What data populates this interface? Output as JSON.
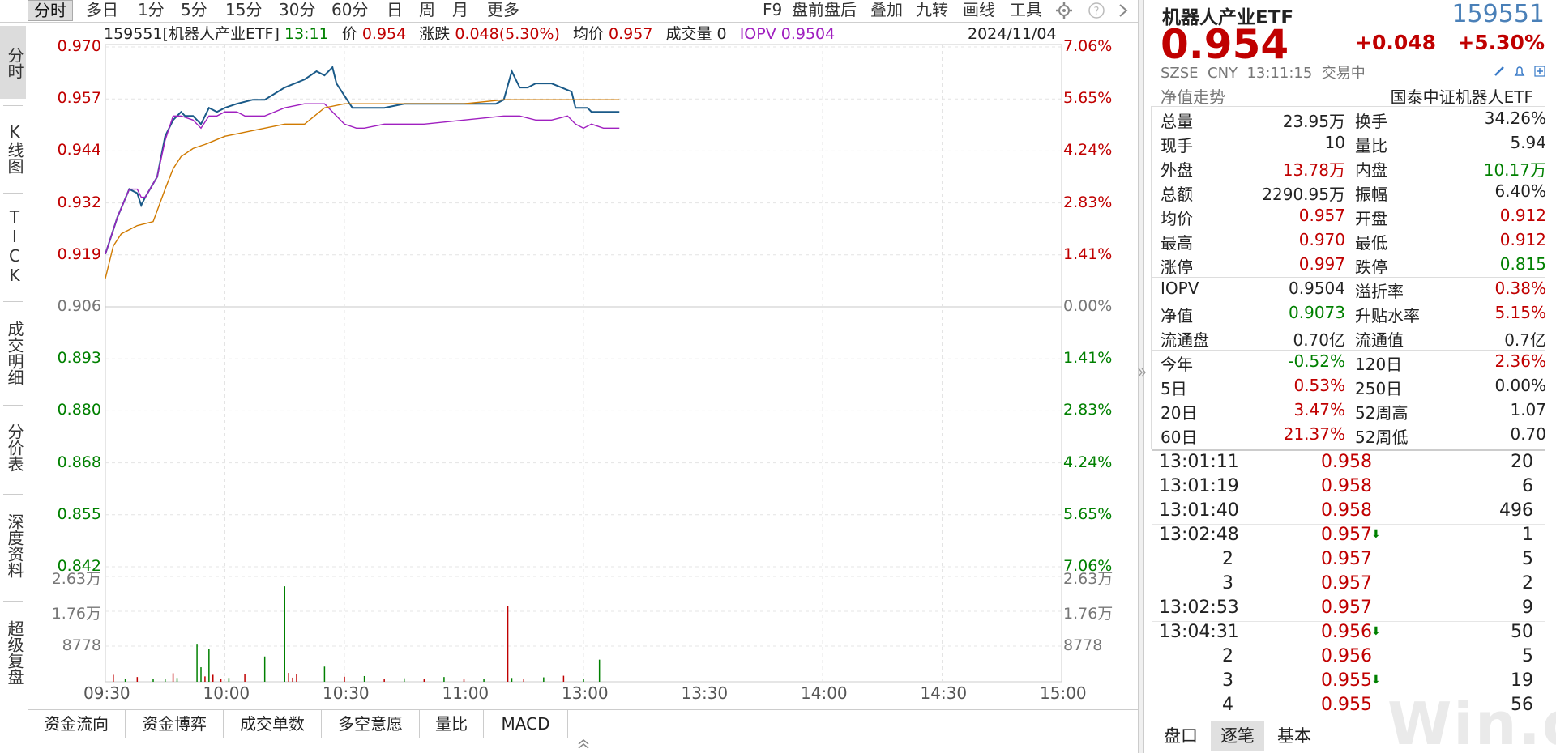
{
  "toolbar": {
    "periods": [
      {
        "label": "分时"
      },
      {
        "label": "多日"
      },
      {
        "label": "1分"
      },
      {
        "label": "5分"
      },
      {
        "label": "15分"
      },
      {
        "label": "30分"
      },
      {
        "label": "60分"
      },
      {
        "label": "日"
      },
      {
        "label": "周"
      },
      {
        "label": "月"
      },
      {
        "label": "更多"
      }
    ],
    "right": [
      {
        "label": "F9"
      },
      {
        "label": "盘前盘后"
      },
      {
        "label": "叠加"
      },
      {
        "label": "九转"
      },
      {
        "label": "画线"
      },
      {
        "label": "工具"
      }
    ],
    "icons": [
      "gear-icon",
      "help-icon",
      "chevron-right-icon"
    ]
  },
  "sidebar": {
    "items": [
      {
        "label": "分时"
      },
      {
        "label": "K线图"
      },
      {
        "label": "TICK"
      },
      {
        "label": "成交明细"
      },
      {
        "label": "分价表"
      },
      {
        "label": "深度资料"
      },
      {
        "label": "超级复盘"
      }
    ]
  },
  "info": {
    "code_name": "159551[机器人产业ETF]",
    "time": "13:11",
    "price_label": "价",
    "price": "0.954",
    "change_label": "涨跌",
    "change": "0.048(5.30%)",
    "avg_label": "均价",
    "avg": "0.957",
    "vol_label": "成交量",
    "vol": "0",
    "iopv_label": "IOPV",
    "iopv": "0.9504",
    "date": "2024/11/04"
  },
  "bottom_tabs": [
    {
      "label": "资金流向"
    },
    {
      "label": "资金博弈"
    },
    {
      "label": "成交单数"
    },
    {
      "label": "多空意愿"
    },
    {
      "label": "量比"
    },
    {
      "label": "MACD"
    }
  ],
  "chart_data": {
    "type": "line",
    "prev_close": 0.906,
    "ylim": [
      0.842,
      0.97
    ],
    "price_ticks": [
      "0.970",
      "0.957",
      "0.944",
      "0.932",
      "0.919",
      "0.906",
      "0.893",
      "0.880",
      "0.868",
      "0.855",
      "0.842"
    ],
    "pct_ticks": [
      "7.06%",
      "5.65%",
      "4.24%",
      "2.83%",
      "1.41%",
      "0.00%",
      "1.41%",
      "2.83%",
      "4.24%",
      "5.65%",
      "7.06%"
    ],
    "vol_ticks": [
      "2.63万",
      "1.76万",
      "8778"
    ],
    "vol_ylim": [
      0,
      35100
    ],
    "x_ticks": [
      "09:30",
      "10:00",
      "10:30",
      "11:00",
      "13:00",
      "13:30",
      "14:00",
      "14:30",
      "15:00"
    ],
    "x_minutes": [
      0,
      30,
      60,
      90,
      120,
      150,
      180,
      210,
      240
    ],
    "total_minutes": 240,
    "series": [
      {
        "color": "#1a5a88",
        "x": [
          0,
          3,
          6,
          8,
          9,
          10,
          13,
          15,
          17,
          19,
          20,
          22,
          24,
          26,
          28,
          30,
          33,
          37,
          40,
          45,
          50,
          53,
          55,
          57,
          58,
          60,
          62,
          65,
          70,
          75,
          80,
          90,
          98,
          100,
          102,
          104,
          106,
          108,
          112,
          117,
          118,
          121,
          122,
          124,
          125,
          126,
          129
        ],
        "values": [
          0.919,
          0.928,
          0.935,
          0.934,
          0.931,
          0.933,
          0.938,
          0.948,
          0.952,
          0.954,
          0.953,
          0.953,
          0.951,
          0.955,
          0.954,
          0.955,
          0.956,
          0.957,
          0.957,
          0.96,
          0.962,
          0.964,
          0.963,
          0.965,
          0.961,
          0.958,
          0.955,
          0.955,
          0.955,
          0.956,
          0.956,
          0.956,
          0.956,
          0.957,
          0.964,
          0.96,
          0.96,
          0.961,
          0.961,
          0.959,
          0.955,
          0.955,
          0.954,
          0.954,
          0.954,
          0.954,
          0.954
        ]
      },
      {
        "color": "#a020c0",
        "x": [
          0,
          3,
          6,
          8,
          9,
          10,
          13,
          15,
          17,
          19,
          22,
          24,
          26,
          28,
          30,
          33,
          35,
          37,
          40,
          45,
          50,
          55,
          57,
          60,
          63,
          65,
          70,
          75,
          80,
          90,
          100,
          104,
          108,
          112,
          116,
          118,
          120,
          122,
          125,
          129
        ],
        "values": [
          0.919,
          0.928,
          0.935,
          0.935,
          0.933,
          0.933,
          0.938,
          0.947,
          0.953,
          0.953,
          0.952,
          0.95,
          0.953,
          0.953,
          0.954,
          0.954,
          0.953,
          0.953,
          0.953,
          0.955,
          0.956,
          0.956,
          0.954,
          0.951,
          0.95,
          0.95,
          0.951,
          0.951,
          0.951,
          0.952,
          0.953,
          0.953,
          0.952,
          0.952,
          0.953,
          0.951,
          0.95,
          0.951,
          0.95,
          0.95
        ]
      },
      {
        "color": "#d07a00",
        "x": [
          0,
          2,
          4,
          8,
          12,
          15,
          17,
          19,
          22,
          25,
          30,
          35,
          40,
          45,
          50,
          55,
          60,
          70,
          80,
          90,
          100,
          110,
          120,
          126,
          129
        ],
        "values": [
          0.913,
          0.921,
          0.924,
          0.926,
          0.927,
          0.935,
          0.94,
          0.943,
          0.945,
          0.946,
          0.948,
          0.949,
          0.95,
          0.951,
          0.951,
          0.955,
          0.956,
          0.956,
          0.956,
          0.956,
          0.957,
          0.957,
          0.957,
          0.957,
          0.957
        ]
      }
    ],
    "volume": {
      "x": [
        2,
        5,
        8,
        12,
        15,
        17,
        18,
        23,
        24,
        25,
        26,
        27,
        29,
        31,
        35,
        40,
        45,
        46,
        47,
        48,
        55,
        60,
        65,
        70,
        75,
        80,
        85,
        90,
        95,
        101,
        102,
        105,
        110,
        115,
        120,
        124
      ],
      "values": [
        2200,
        900,
        1500,
        800,
        1000,
        2700,
        1200,
        12000,
        4600,
        1700,
        10500,
        2200,
        900,
        1200,
        2500,
        8000,
        30200,
        2800,
        1300,
        2300,
        4800,
        1600,
        1800,
        1000,
        1100,
        1000,
        1500,
        900,
        800,
        24000,
        1200,
        900,
        1400,
        1900,
        1000,
        7000
      ],
      "colors": [
        "r",
        "g",
        "r",
        "g",
        "g",
        "r",
        "g",
        "g",
        "g",
        "r",
        "g",
        "r",
        "r",
        "g",
        "r",
        "g",
        "g",
        "r",
        "r",
        "r",
        "g",
        "r",
        "g",
        "r",
        "g",
        "r",
        "g",
        "r",
        "g",
        "r",
        "g",
        "r",
        "g",
        "r",
        "g",
        "g"
      ]
    }
  },
  "panel": {
    "name": "机器人产业ETF",
    "code": "159551",
    "price": "0.954",
    "change": "+0.048",
    "pct": "+5.30%",
    "meta": "SZSE  CNY  13:11:15  交易中",
    "nav_trend": "净值走势",
    "index_name": "国泰中证机器人ETF",
    "rows": [
      [
        {
          "k": "总量",
          "v": "23.95万",
          "c": "blk"
        },
        {
          "k": "换手",
          "v": "34.26%",
          "c": "blk"
        }
      ],
      [
        {
          "k": "现手",
          "v": "10",
          "c": "blk"
        },
        {
          "k": "量比",
          "v": "5.94",
          "c": "blk"
        }
      ],
      [
        {
          "k": "外盘",
          "v": "13.78万",
          "c": "red"
        },
        {
          "k": "内盘",
          "v": "10.17万",
          "c": "green"
        }
      ],
      [
        {
          "k": "总额",
          "v": "2290.95万",
          "c": "blk"
        },
        {
          "k": "振幅",
          "v": "6.40%",
          "c": "blk"
        }
      ],
      [
        {
          "k": "均价",
          "v": "0.957",
          "c": "red"
        },
        {
          "k": "开盘",
          "v": "0.912",
          "c": "red"
        }
      ],
      [
        {
          "k": "最高",
          "v": "0.970",
          "c": "red"
        },
        {
          "k": "最低",
          "v": "0.912",
          "c": "red"
        }
      ],
      [
        {
          "k": "涨停",
          "v": "0.997",
          "c": "red"
        },
        {
          "k": "跌停",
          "v": "0.815",
          "c": "green"
        }
      ],
      [
        {
          "k": "IOPV",
          "v": "0.9504",
          "c": "blk"
        },
        {
          "k": "溢折率",
          "v": "0.38%",
          "c": "red"
        }
      ],
      [
        {
          "k": "净值",
          "v": "0.9073",
          "c": "green"
        },
        {
          "k": "升贴水率",
          "v": "5.15%",
          "c": "red"
        }
      ],
      [
        {
          "k": "流通盘",
          "v": "0.70亿",
          "c": "blk"
        },
        {
          "k": "流通值",
          "v": "0.7亿",
          "c": "blk"
        }
      ],
      [
        {
          "k": "今年",
          "v": "-0.52%",
          "c": "green"
        },
        {
          "k": "120日",
          "v": "2.36%",
          "c": "red"
        }
      ],
      [
        {
          "k": "5日",
          "v": "0.53%",
          "c": "red"
        },
        {
          "k": "250日",
          "v": "0.00%",
          "c": "blk"
        }
      ],
      [
        {
          "k": "20日",
          "v": "3.47%",
          "c": "red"
        },
        {
          "k": "52周高",
          "v": "1.07",
          "c": "blk"
        }
      ],
      [
        {
          "k": "60日",
          "v": "21.37%",
          "c": "red"
        },
        {
          "k": "52周低",
          "v": "0.70",
          "c": "blk"
        }
      ]
    ],
    "ticks": [
      {
        "t": "13:01:11",
        "p": "0.958",
        "d": "",
        "v": "20"
      },
      {
        "t": "13:01:19",
        "p": "0.958",
        "d": "",
        "v": "6"
      },
      {
        "t": "13:01:40",
        "p": "0.958",
        "d": "",
        "v": "496"
      },
      {
        "t": "13:02:48",
        "p": "0.957",
        "d": "down",
        "v": "1"
      },
      {
        "t": "2",
        "p": "0.957",
        "d": "",
        "v": "5"
      },
      {
        "t": "3",
        "p": "0.957",
        "d": "",
        "v": "2"
      },
      {
        "t": "13:02:53",
        "p": "0.957",
        "d": "",
        "v": "9"
      },
      {
        "t": "13:04:31",
        "p": "0.956",
        "d": "down",
        "v": "50"
      },
      {
        "t": "2",
        "p": "0.956",
        "d": "",
        "v": "5"
      },
      {
        "t": "3",
        "p": "0.955",
        "d": "down",
        "v": "19"
      },
      {
        "t": "4",
        "p": "0.955",
        "d": "",
        "v": "56"
      }
    ],
    "tabs": [
      {
        "label": "盘口"
      },
      {
        "label": "逐笔"
      },
      {
        "label": "基本"
      }
    ],
    "watermark": "Win.d"
  }
}
